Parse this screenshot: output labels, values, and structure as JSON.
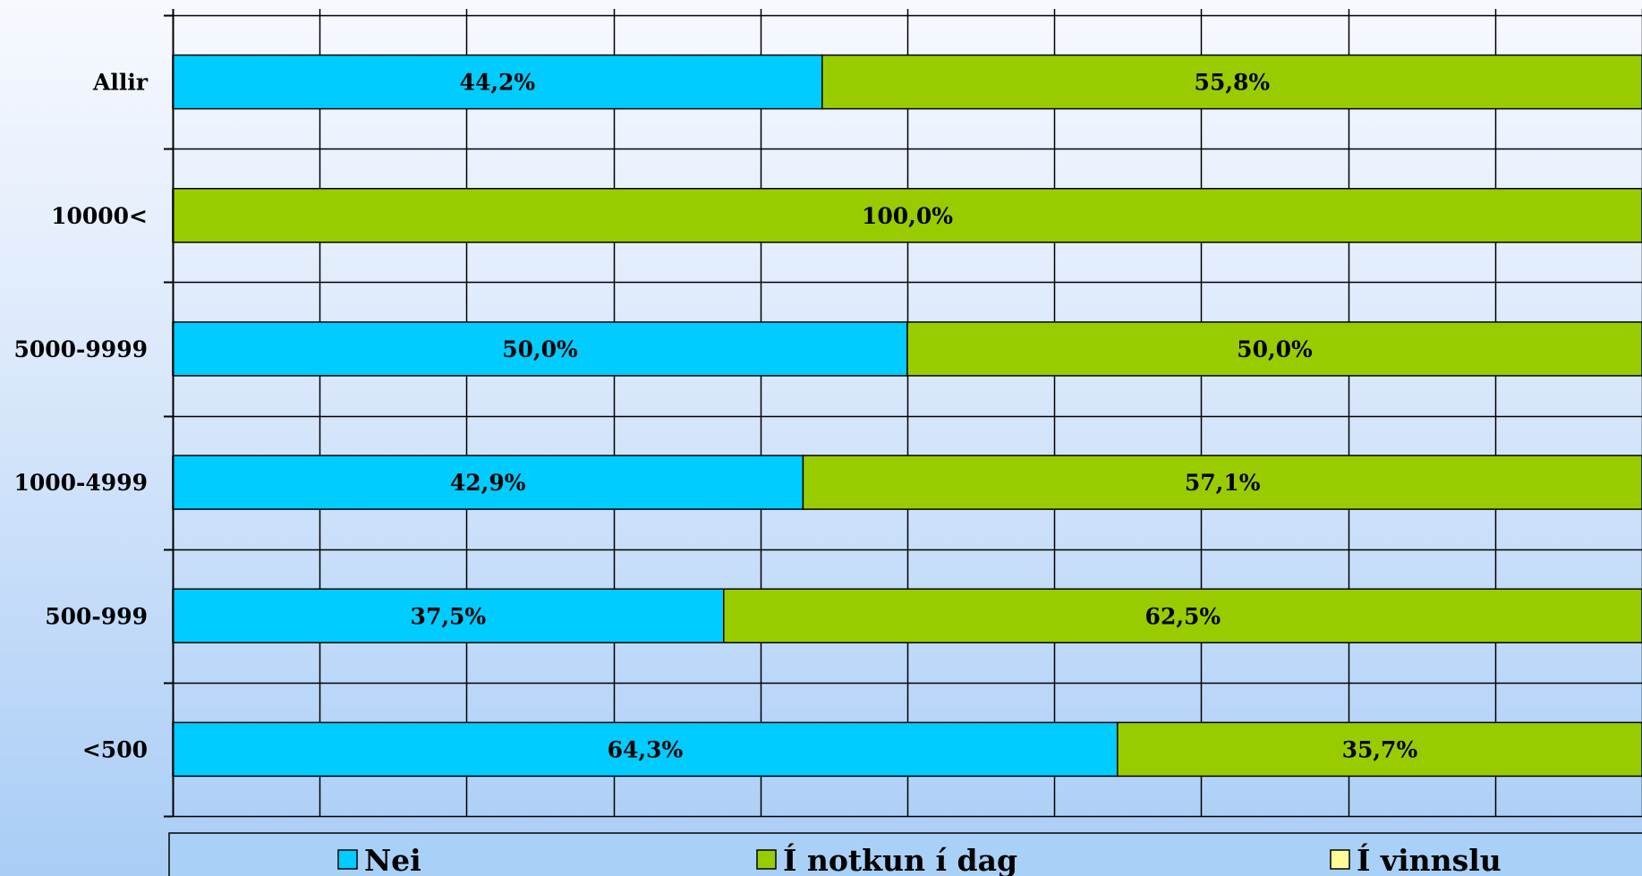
{
  "chart_data": {
    "type": "bar",
    "orientation": "horizontal",
    "stacked": true,
    "categories": [
      "Allir",
      "10000<",
      "5000-9999",
      "1000-4999",
      "500-999",
      "<500"
    ],
    "series": [
      {
        "name": "Nei",
        "color": "#00ccff",
        "values": [
          44.2,
          0,
          50.0,
          42.9,
          37.5,
          64.3
        ],
        "labels": [
          "44,2%",
          "",
          "50,0%",
          "42,9%",
          "37,5%",
          "64,3%"
        ]
      },
      {
        "name": "Í notkun í dag",
        "color": "#99cc00",
        "values": [
          55.8,
          100.0,
          50.0,
          57.1,
          62.5,
          35.7
        ],
        "labels": [
          "55,8%",
          "100,0%",
          "50,0%",
          "57,1%",
          "62,5%",
          "35,7%"
        ]
      },
      {
        "name": "Í vinnslu",
        "color": "#ffff99",
        "values": [
          0,
          0,
          0,
          0,
          0,
          0
        ],
        "labels": [
          "",
          "",
          "",
          "",
          "",
          ""
        ]
      }
    ],
    "xlim": [
      0,
      100
    ],
    "grid": true,
    "legend": "bottom"
  }
}
